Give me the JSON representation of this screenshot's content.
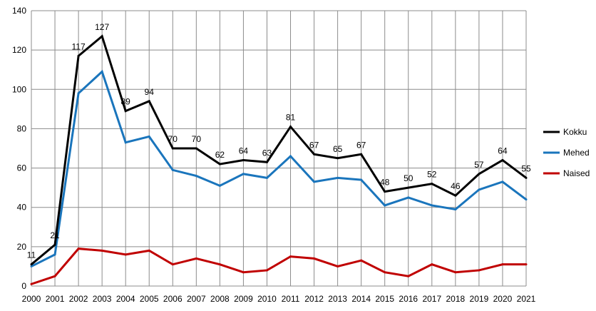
{
  "chart_data": {
    "type": "line",
    "title": "",
    "xlabel": "",
    "ylabel": "",
    "x": [
      "2000",
      "2001",
      "2002",
      "2003",
      "2004",
      "2005",
      "2006",
      "2007",
      "2008",
      "2009",
      "2010",
      "2011",
      "2012",
      "2013",
      "2014",
      "2015",
      "2016",
      "2017",
      "2018",
      "2019",
      "2020",
      "2021"
    ],
    "ylim": [
      0,
      140
    ],
    "yticks": [
      0,
      20,
      40,
      60,
      80,
      100,
      120,
      140
    ],
    "grid": true,
    "legend_position": "right",
    "series": [
      {
        "name": "Kokku",
        "color": "#000000",
        "values": [
          11,
          21,
          117,
          127,
          89,
          94,
          70,
          70,
          62,
          64,
          63,
          81,
          67,
          65,
          67,
          48,
          50,
          52,
          46,
          57,
          64,
          55
        ],
        "data_labels": true
      },
      {
        "name": "Mehed",
        "color": "#1a75bc",
        "values": [
          10,
          16,
          98,
          109,
          73,
          76,
          59,
          56,
          51,
          57,
          55,
          66,
          53,
          55,
          54,
          41,
          45,
          41,
          39,
          49,
          53,
          44
        ],
        "data_labels": false
      },
      {
        "name": "Naised",
        "color": "#c00000",
        "values": [
          1,
          5,
          19,
          18,
          16,
          18,
          11,
          14,
          11,
          7,
          8,
          15,
          14,
          10,
          13,
          7,
          5,
          11,
          7,
          8,
          11,
          11
        ],
        "data_labels": false
      }
    ]
  }
}
